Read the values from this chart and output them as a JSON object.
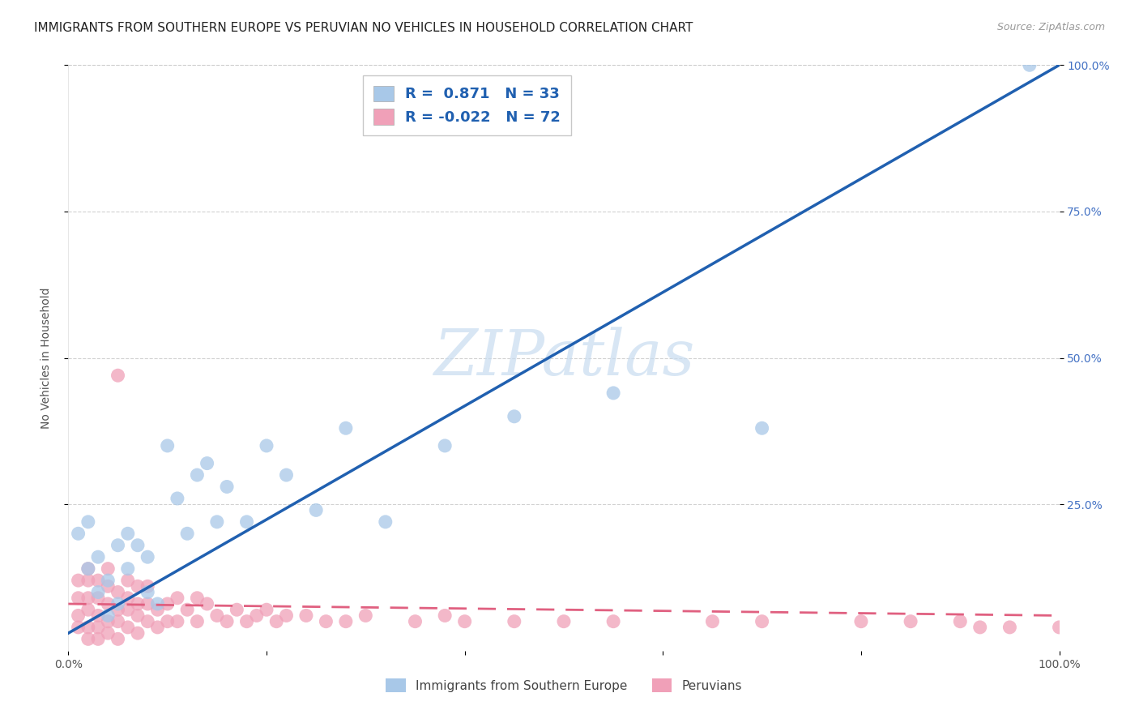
{
  "title": "IMMIGRANTS FROM SOUTHERN EUROPE VS PERUVIAN NO VEHICLES IN HOUSEHOLD CORRELATION CHART",
  "source": "Source: ZipAtlas.com",
  "ylabel": "No Vehicles in Household",
  "yticks_right": [
    "25.0%",
    "50.0%",
    "75.0%",
    "100.0%"
  ],
  "ytick_vals": [
    25,
    50,
    75,
    100
  ],
  "xtick_positions": [
    0,
    20,
    40,
    60,
    80,
    100
  ],
  "xtick_labels": [
    "0.0%",
    "",
    "",
    "",
    "",
    "100.0%"
  ],
  "legend_blue_r": "0.871",
  "legend_blue_n": "33",
  "legend_pink_r": "-0.022",
  "legend_pink_n": "72",
  "legend_label_blue": "Immigrants from Southern Europe",
  "legend_label_pink": "Peruvians",
  "blue_color": "#A8C8E8",
  "pink_color": "#F0A0B8",
  "blue_line_color": "#2060B0",
  "pink_line_color": "#E06080",
  "watermark_color": "#C8DCF0",
  "blue_scatter_x": [
    1,
    2,
    2,
    3,
    3,
    4,
    4,
    5,
    5,
    6,
    6,
    7,
    8,
    8,
    9,
    10,
    11,
    12,
    13,
    14,
    15,
    16,
    18,
    20,
    22,
    25,
    28,
    32,
    38,
    45,
    55,
    70,
    97
  ],
  "blue_scatter_y": [
    20,
    14,
    22,
    10,
    16,
    6,
    12,
    8,
    18,
    14,
    20,
    18,
    16,
    10,
    8,
    35,
    26,
    20,
    30,
    32,
    22,
    28,
    22,
    35,
    30,
    24,
    38,
    22,
    35,
    40,
    44,
    38,
    100
  ],
  "pink_scatter_x": [
    1,
    1,
    1,
    1,
    2,
    2,
    2,
    2,
    2,
    2,
    3,
    3,
    3,
    3,
    3,
    4,
    4,
    4,
    4,
    4,
    5,
    5,
    5,
    5,
    5,
    6,
    6,
    6,
    6,
    7,
    7,
    7,
    7,
    8,
    8,
    8,
    9,
    9,
    10,
    10,
    11,
    11,
    12,
    13,
    13,
    14,
    15,
    16,
    17,
    18,
    19,
    20,
    21,
    22,
    24,
    26,
    28,
    30,
    35,
    38,
    40,
    45,
    50,
    55,
    65,
    70,
    80,
    85,
    90,
    92,
    95,
    100
  ],
  "pink_scatter_y": [
    4,
    6,
    9,
    12,
    2,
    4,
    7,
    9,
    12,
    14,
    2,
    4,
    6,
    9,
    12,
    3,
    5,
    8,
    11,
    14,
    2,
    5,
    7,
    10,
    47,
    4,
    7,
    9,
    12,
    3,
    6,
    8,
    11,
    5,
    8,
    11,
    4,
    7,
    5,
    8,
    5,
    9,
    7,
    5,
    9,
    8,
    6,
    5,
    7,
    5,
    6,
    7,
    5,
    6,
    6,
    5,
    5,
    6,
    5,
    6,
    5,
    5,
    5,
    5,
    5,
    5,
    5,
    5,
    5,
    4,
    4,
    4
  ],
  "blue_line_x0": 0,
  "blue_line_y0": 3,
  "blue_line_x1": 100,
  "blue_line_y1": 100,
  "pink_line_x0": 0,
  "pink_line_y0": 8,
  "pink_line_x1": 100,
  "pink_line_y1": 6,
  "xlim": [
    0,
    100
  ],
  "ylim": [
    0,
    100
  ],
  "title_fontsize": 11,
  "axis_label_fontsize": 10,
  "tick_fontsize": 10
}
